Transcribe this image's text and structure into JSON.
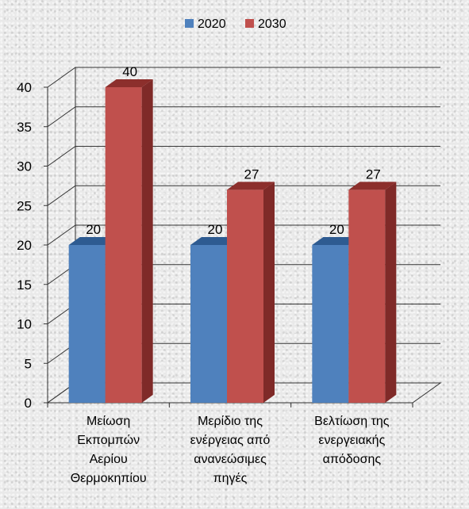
{
  "colors": {
    "series_2020": "#4f81bd",
    "series_2020_top": "#2e5b91",
    "series_2020_side": "#385d8a",
    "series_2030": "#c0504d",
    "series_2030_top": "#8c2f2c",
    "series_2030_side": "#7f2a28",
    "gridline": "#333333"
  },
  "chart_data": {
    "type": "bar",
    "style": "3d-clustered-column",
    "categories": [
      [
        "Μείωση",
        "Εκπομπών",
        "Αερίου",
        "Θερμοκηπίου"
      ],
      [
        "Μερίδιο της",
        "ενέργειας από",
        "ανανεώσιμες",
        "πηγές"
      ],
      [
        "Βελτίωση της",
        "ενεργειακής",
        "απόδοσης"
      ]
    ],
    "series": [
      {
        "name": "2020",
        "values": [
          20,
          20,
          20
        ],
        "color": "#4f81bd"
      },
      {
        "name": "2030",
        "values": [
          40,
          27,
          27
        ],
        "color": "#c0504d"
      }
    ],
    "ylim": [
      0,
      40
    ],
    "yticks": [
      0,
      5,
      10,
      15,
      20,
      25,
      30,
      35,
      40
    ],
    "grid": true,
    "legend": "top-center",
    "data_labels": true
  }
}
